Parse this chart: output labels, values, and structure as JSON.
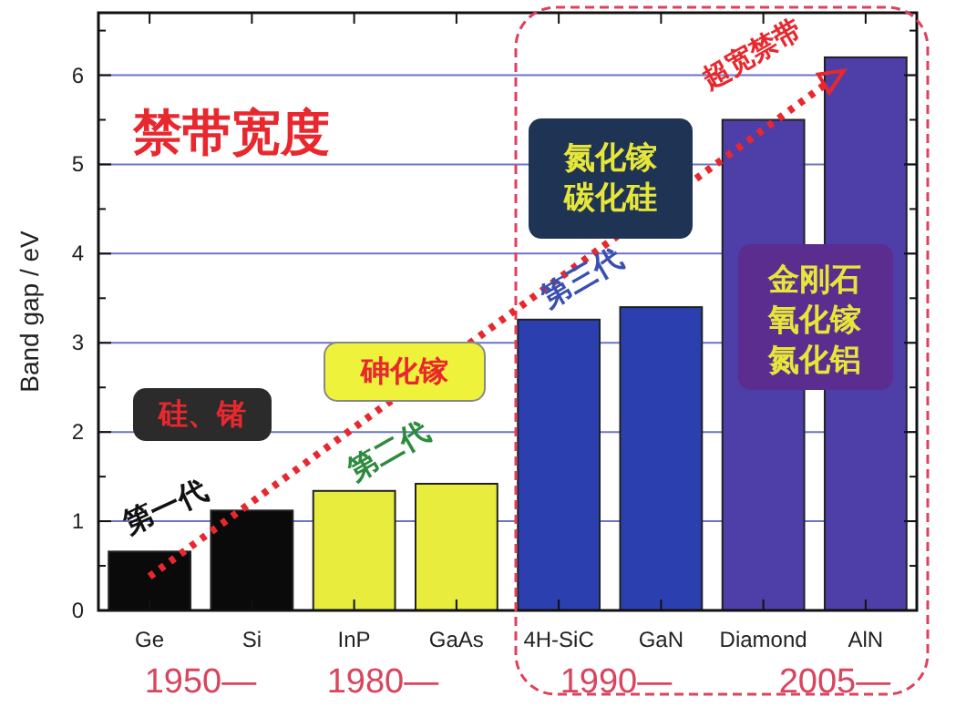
{
  "chart_data": {
    "type": "bar",
    "title": "禁带宽度",
    "ylabel": "Band gap / eV",
    "categories": [
      "Ge",
      "Si",
      "InP",
      "GaAs",
      "4H-SiC",
      "GaN",
      "Diamond",
      "AlN"
    ],
    "values": [
      0.66,
      1.12,
      1.34,
      1.42,
      3.26,
      3.4,
      5.5,
      6.2
    ],
    "colors": [
      "#0a0a0a",
      "#0a0a0a",
      "#e8ec3c",
      "#e8ec3c",
      "#2c3fae",
      "#2c3fae",
      "#4e3ea8",
      "#4e3ea8"
    ],
    "ylim": [
      0,
      6.7
    ],
    "yticks": [
      0,
      {
        "value": 0.5,
        "label": null
      },
      1,
      {
        "value": 1.5,
        "label": null
      },
      2,
      {
        "value": 2.5,
        "label": null
      },
      3,
      {
        "value": 3.5,
        "label": null
      },
      4,
      {
        "value": 4.5,
        "label": null
      },
      5,
      {
        "value": 5.5,
        "label": null
      },
      6,
      {
        "value": 6.5,
        "label": null
      }
    ],
    "grid": "y",
    "annotations": [
      "硅、锗",
      "第一代",
      "砷化镓",
      "第二代",
      "氮化镓",
      "碳化硅",
      "第三代",
      "金刚石",
      "氧化镓",
      "氮化铝",
      "超宽禁带",
      "1950—",
      "1980—",
      "1990—",
      "2005—"
    ]
  }
}
